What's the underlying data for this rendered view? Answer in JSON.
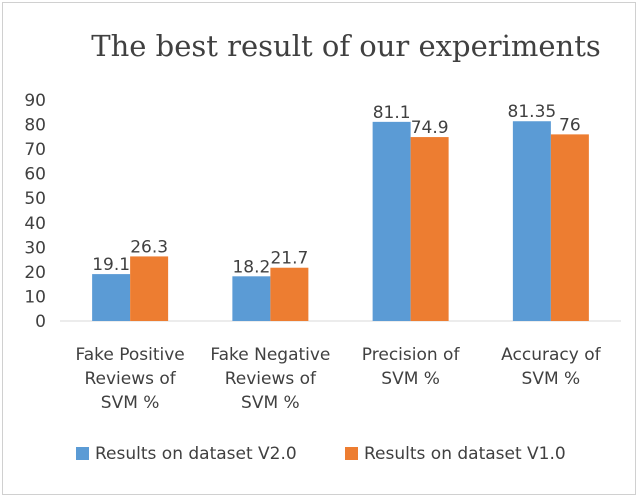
{
  "chart_data": {
    "type": "bar",
    "title": "The best result of our experiments",
    "categories": [
      [
        "Fake Positive",
        "Reviews of",
        "SVM %"
      ],
      [
        "Fake Negative",
        "Reviews of",
        "SVM %"
      ],
      [
        "Precision of",
        "SVM %"
      ],
      [
        "Accuracy of",
        "SVM %"
      ]
    ],
    "series": [
      {
        "name": "Results on dataset V2.0",
        "values": [
          19.1,
          18.2,
          81.1,
          81.35
        ],
        "color": "#5b9bd5"
      },
      {
        "name": "Results on dataset V1.0",
        "values": [
          26.3,
          21.7,
          74.9,
          76
        ],
        "color": "#ed7d31"
      }
    ],
    "ylim": [
      0,
      90
    ],
    "yticks": [
      0,
      10,
      20,
      30,
      40,
      50,
      60,
      70,
      80,
      90
    ],
    "grid": false,
    "legend_position": "bottom"
  }
}
